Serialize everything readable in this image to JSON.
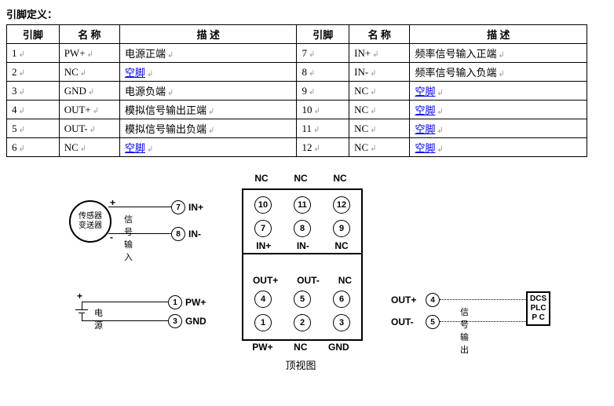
{
  "title": "引脚定义：",
  "headers": {
    "pin": "引脚",
    "name": "名 称",
    "desc": "描  述"
  },
  "rowsL": [
    {
      "pin": "1",
      "name": "PW+",
      "desc": "电源正端",
      "link": false
    },
    {
      "pin": "2",
      "name": "NC",
      "desc": "空脚",
      "link": true
    },
    {
      "pin": "3",
      "name": "GND",
      "desc": "电源负端",
      "link": false
    },
    {
      "pin": "4",
      "name": "OUT+",
      "desc": "模拟信号输出正端",
      "link": false
    },
    {
      "pin": "5",
      "name": "OUT-",
      "desc": "模拟信号输出负端",
      "link": false
    },
    {
      "pin": "6",
      "name": "NC",
      "desc": "空脚",
      "link": true
    }
  ],
  "rowsR": [
    {
      "pin": "7",
      "name": "IN+",
      "desc": "频率信号输入正端",
      "link": false
    },
    {
      "pin": "8",
      "name": "IN-",
      "desc": "频率信号输入负端",
      "link": false
    },
    {
      "pin": "9",
      "name": "NC",
      "desc": "空脚",
      "link": true
    },
    {
      "pin": "10",
      "name": "NC",
      "desc": "空脚",
      "link": true
    },
    {
      "pin": "11",
      "name": "NC",
      "desc": "空脚",
      "link": true
    },
    {
      "pin": "12",
      "name": "NC",
      "desc": "空脚",
      "link": true
    }
  ],
  "diagram": {
    "caption": "顶视图",
    "topLabels": [
      "NC",
      "NC",
      "NC"
    ],
    "botLabels": [
      "PW+",
      "NC",
      "GND"
    ],
    "pinNums": {
      "row1": [
        "10",
        "11",
        "12"
      ],
      "row2": [
        "7",
        "8",
        "9"
      ],
      "row3": [
        "4",
        "5",
        "6"
      ],
      "row4": [
        "1",
        "2",
        "3"
      ]
    },
    "midLabelsTop": [
      "IN+",
      "IN-",
      "NC"
    ],
    "midLabelsBot": [
      "OUT+",
      "OUT-",
      "NC"
    ],
    "sensor": {
      "label1": "传感器",
      "label2": "变送器",
      "note": "信号输入",
      "p7": "7",
      "p8": "8",
      "in_p": "IN+",
      "in_n": "IN-",
      "plus": "+",
      "minus": "-"
    },
    "power": {
      "label": "电源",
      "p1": "1",
      "p3": "3",
      "pw": "PW+",
      "gnd": "GND",
      "plus": "+"
    },
    "out": {
      "label": "信号输出",
      "p4": "4",
      "p5": "5",
      "op": "OUT+",
      "on": "OUT-",
      "dev1": "DCS",
      "dev2": "PLC",
      "dev3": "P  C"
    }
  }
}
